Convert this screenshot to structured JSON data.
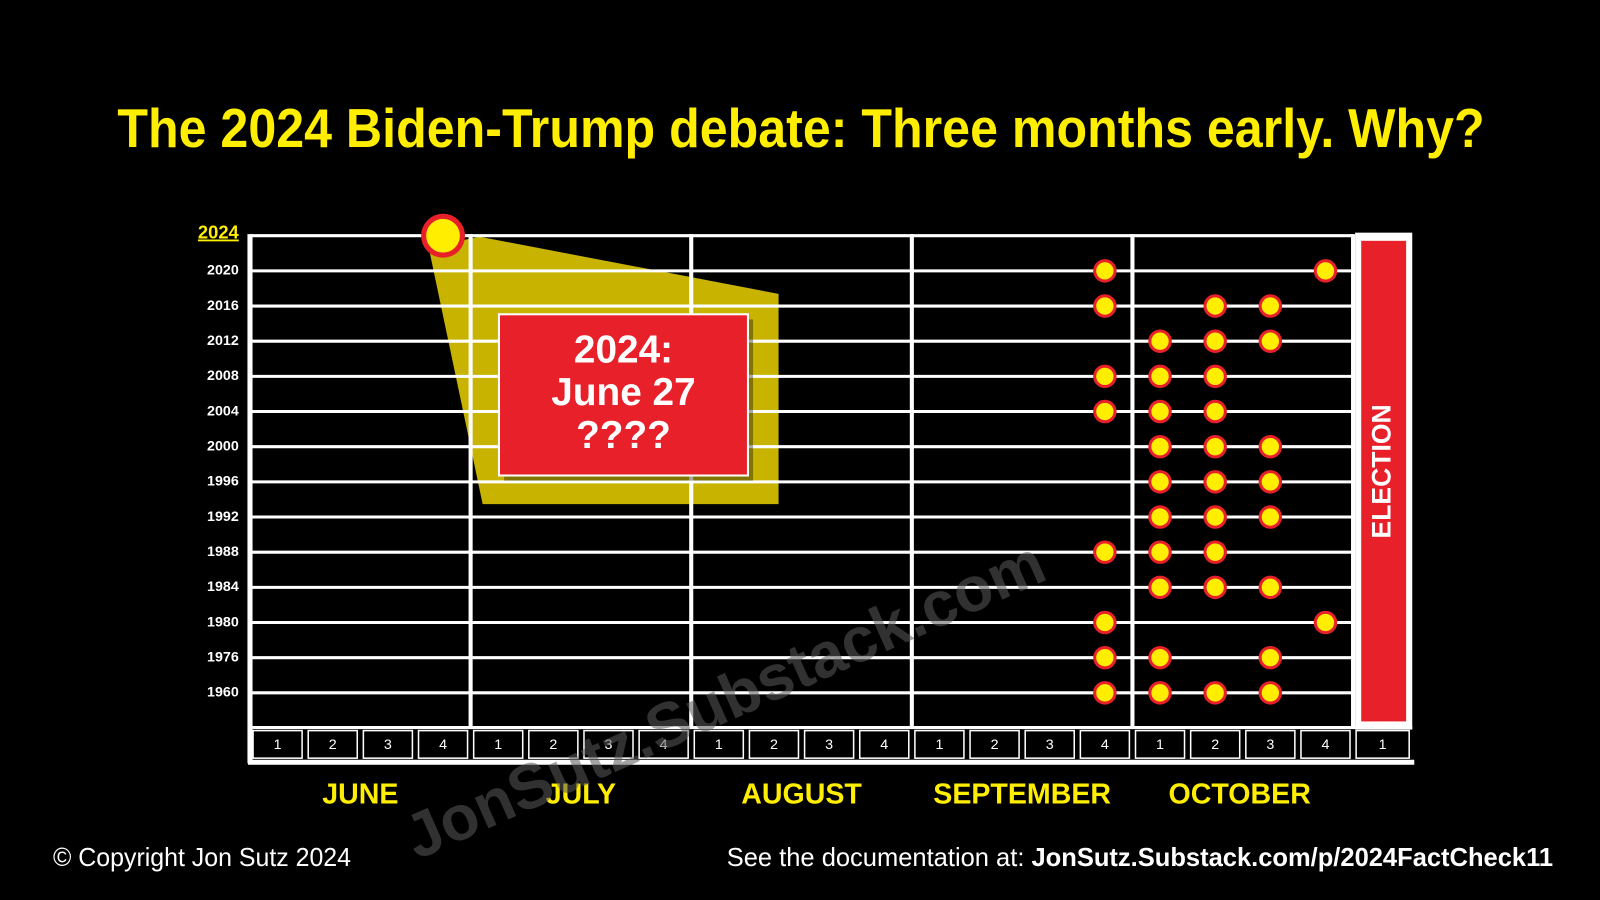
{
  "title": "The 2024 Biden-Trump debate: Three months early. Why?",
  "months": [
    {
      "name": "JUNE",
      "weeks": [
        1,
        2,
        3,
        4
      ]
    },
    {
      "name": "JULY",
      "weeks": [
        1,
        2,
        3,
        4
      ]
    },
    {
      "name": "AUGUST",
      "weeks": [
        1,
        2,
        3,
        4
      ]
    },
    {
      "name": "SEPTEMBER",
      "weeks": [
        1,
        2,
        3,
        4
      ]
    },
    {
      "name": "OCTOBER",
      "weeks": [
        1,
        2,
        3,
        4
      ]
    }
  ],
  "election_week": 1,
  "election_label": "ELECTION",
  "rows": [
    {
      "year": "2024",
      "dots": [
        {
          "month": "JUNE",
          "week": 4
        }
      ]
    },
    {
      "year": "2020",
      "dots": [
        {
          "month": "SEPTEMBER",
          "week": 4
        },
        {
          "month": "OCTOBER",
          "week": 4
        }
      ]
    },
    {
      "year": "2016",
      "dots": [
        {
          "month": "SEPTEMBER",
          "week": 4
        },
        {
          "month": "OCTOBER",
          "week": 2
        },
        {
          "month": "OCTOBER",
          "week": 3
        }
      ]
    },
    {
      "year": "2012",
      "dots": [
        {
          "month": "OCTOBER",
          "week": 1
        },
        {
          "month": "OCTOBER",
          "week": 2
        },
        {
          "month": "OCTOBER",
          "week": 3
        }
      ]
    },
    {
      "year": "2008",
      "dots": [
        {
          "month": "SEPTEMBER",
          "week": 4
        },
        {
          "month": "OCTOBER",
          "week": 1
        },
        {
          "month": "OCTOBER",
          "week": 2
        }
      ]
    },
    {
      "year": "2004",
      "dots": [
        {
          "month": "SEPTEMBER",
          "week": 4
        },
        {
          "month": "OCTOBER",
          "week": 1
        },
        {
          "month": "OCTOBER",
          "week": 2
        }
      ]
    },
    {
      "year": "2000",
      "dots": [
        {
          "month": "OCTOBER",
          "week": 1
        },
        {
          "month": "OCTOBER",
          "week": 2
        },
        {
          "month": "OCTOBER",
          "week": 3
        }
      ]
    },
    {
      "year": "1996",
      "dots": [
        {
          "month": "OCTOBER",
          "week": 1
        },
        {
          "month": "OCTOBER",
          "week": 2
        },
        {
          "month": "OCTOBER",
          "week": 3
        }
      ]
    },
    {
      "year": "1992",
      "dots": [
        {
          "month": "OCTOBER",
          "week": 1
        },
        {
          "month": "OCTOBER",
          "week": 2
        },
        {
          "month": "OCTOBER",
          "week": 3
        }
      ]
    },
    {
      "year": "1988",
      "dots": [
        {
          "month": "SEPTEMBER",
          "week": 4
        },
        {
          "month": "OCTOBER",
          "week": 1
        },
        {
          "month": "OCTOBER",
          "week": 2
        }
      ]
    },
    {
      "year": "1984",
      "dots": [
        {
          "month": "OCTOBER",
          "week": 1
        },
        {
          "month": "OCTOBER",
          "week": 2
        },
        {
          "month": "OCTOBER",
          "week": 3
        }
      ]
    },
    {
      "year": "1980",
      "dots": [
        {
          "month": "SEPTEMBER",
          "week": 4
        },
        {
          "month": "OCTOBER",
          "week": 4
        }
      ]
    },
    {
      "year": "1976",
      "dots": [
        {
          "month": "SEPTEMBER",
          "week": 4
        },
        {
          "month": "OCTOBER",
          "week": 1
        },
        {
          "month": "OCTOBER",
          "week": 3
        }
      ]
    },
    {
      "year": "1960",
      "dots": [
        {
          "month": "SEPTEMBER",
          "week": 4
        },
        {
          "month": "OCTOBER",
          "week": 1
        },
        {
          "month": "OCTOBER",
          "week": 2
        },
        {
          "month": "OCTOBER",
          "week": 3
        }
      ]
    }
  ],
  "callout": {
    "lines": [
      "2024:",
      "June 27",
      "????"
    ]
  },
  "watermark": "JonSutz.Substack.com",
  "footer": {
    "copyright": "© Copyright Jon Sutz 2024",
    "doc_prefix": "See the documentation at: ",
    "doc_link": "JonSutz.Substack.com/p/2024FactCheck11"
  }
}
